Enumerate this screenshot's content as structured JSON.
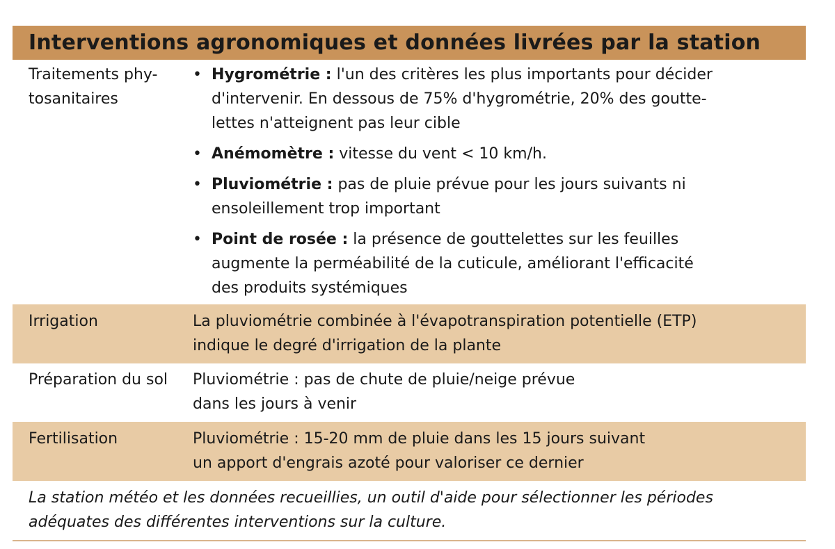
{
  "title": "Interventions agronomiques et données livrées par la station",
  "rows": [
    {
      "label": [
        "Traitements phy-",
        "tosanitaires"
      ],
      "bullets": [
        {
          "term": "Hygrométrie :",
          "lines": [
            " l'un des critères les plus importants pour décider",
            "d'intervenir. En dessous de 75% d'hygrométrie, 20% des goutte-",
            "lettes n'atteignent pas leur cible"
          ]
        },
        {
          "term": "Anémomètre :",
          "lines": [
            " vitesse du vent < 10 km/h."
          ]
        },
        {
          "term": "Pluviométrie :",
          "lines": [
            " pas de pluie prévue pour les jours suivants ni",
            "ensoleillement trop important"
          ]
        },
        {
          "term": "Point de rosée :",
          "lines": [
            " la présence de gouttelettes sur les feuilles",
            "augmente la perméabilité de la cuticule, améliorant l'efficacité",
            "des produits systémiques"
          ]
        }
      ]
    },
    {
      "label": [
        "Irrigation"
      ],
      "lines": [
        "La pluviométrie combinée à l'évapotranspiration potentielle (ETP)",
        "indique le degré d'irrigation de la plante"
      ]
    },
    {
      "label": [
        "Préparation du sol"
      ],
      "lines": [
        "Pluviométrie : pas de chute de pluie/neige prévue",
        "dans les jours à venir"
      ]
    },
    {
      "label": [
        "Fertilisation"
      ],
      "lines": [
        "Pluviométrie : 15-20 mm de pluie dans les 15 jours suivant",
        "un apport d'engrais azoté pour valoriser ce dernier"
      ]
    }
  ],
  "footer": [
    "La station météo et les données recueillies, un outil d'aide pour sélectionner les périodes",
    "adéquates des différentes interventions sur la culture."
  ],
  "colors": {
    "header": "#C9935A",
    "band": "#E8CBA5"
  }
}
